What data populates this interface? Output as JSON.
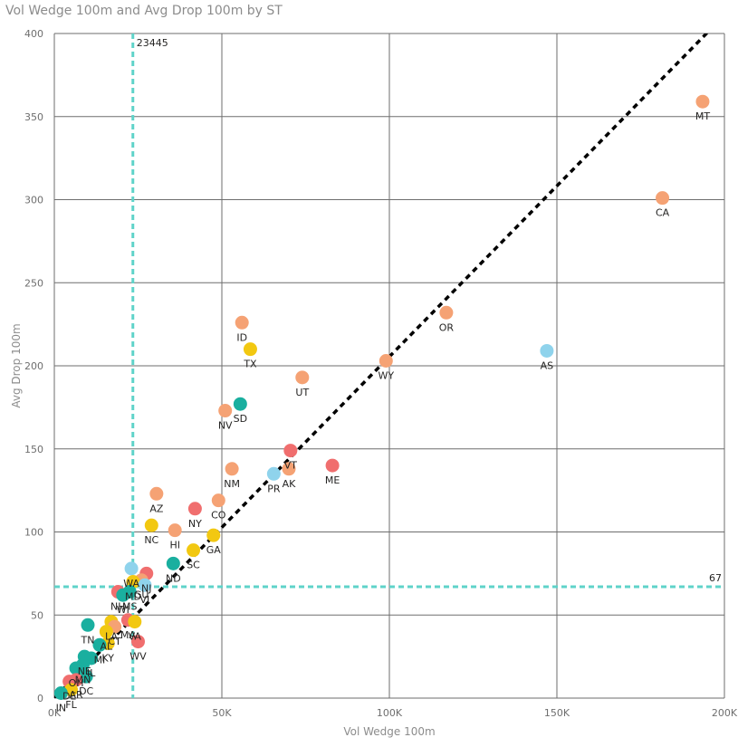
{
  "chart_data": {
    "type": "scatter",
    "title": "Vol Wedge 100m and Avg Drop 100m by ST",
    "xlabel": "Vol Wedge 100m",
    "ylabel": "Avg Drop 100m",
    "xlim": [
      0,
      200000
    ],
    "ylim": [
      0,
      400
    ],
    "x_ticks": [
      0,
      50000,
      100000,
      150000,
      200000
    ],
    "x_tick_labels": [
      "0K",
      "50K",
      "100K",
      "150K",
      "200K"
    ],
    "y_ticks": [
      0,
      50,
      100,
      150,
      200,
      250,
      300,
      350,
      400
    ],
    "y_tick_labels": [
      "0",
      "50",
      "100",
      "150",
      "200",
      "250",
      "300",
      "350",
      "400"
    ],
    "grid": true,
    "reference_lines": {
      "x": {
        "value": 23445,
        "label": "23445"
      },
      "y": {
        "value": 67,
        "label": "67"
      }
    },
    "trend_line": {
      "x": [
        0,
        200000
      ],
      "y": [
        0,
        411
      ]
    },
    "colors": {
      "teal": "#1aaf9f",
      "orange": "#f5a274",
      "yellow": "#f2c811",
      "red": "#f06e6e",
      "lightblue": "#8fd3ec",
      "grid": "#6e6e6e",
      "reference": "#5fd3c9",
      "trend": "#000000"
    },
    "points": [
      {
        "label": "MT",
        "x": 193500,
        "y": 359,
        "color": "orange"
      },
      {
        "label": "CA",
        "x": 181500,
        "y": 301,
        "color": "orange"
      },
      {
        "label": "OR",
        "x": 117000,
        "y": 232,
        "color": "orange"
      },
      {
        "label": "AS",
        "x": 147000,
        "y": 209,
        "color": "lightblue"
      },
      {
        "label": "WY",
        "x": 99000,
        "y": 203,
        "color": "orange"
      },
      {
        "label": "ID",
        "x": 56000,
        "y": 226,
        "color": "orange"
      },
      {
        "label": "TX",
        "x": 58500,
        "y": 210,
        "color": "yellow"
      },
      {
        "label": "UT",
        "x": 74000,
        "y": 193,
        "color": "orange"
      },
      {
        "label": "SD",
        "x": 55500,
        "y": 177,
        "color": "teal"
      },
      {
        "label": "NV",
        "x": 51000,
        "y": 173,
        "color": "orange"
      },
      {
        "label": "VT",
        "x": 70500,
        "y": 149,
        "color": "red"
      },
      {
        "label": "ME",
        "x": 83000,
        "y": 140,
        "color": "red"
      },
      {
        "label": "AK",
        "x": 70000,
        "y": 138,
        "color": "orange"
      },
      {
        "label": "PR",
        "x": 65500,
        "y": 135,
        "color": "lightblue"
      },
      {
        "label": "NM",
        "x": 53000,
        "y": 138,
        "color": "orange"
      },
      {
        "label": "AZ",
        "x": 30500,
        "y": 123,
        "color": "orange"
      },
      {
        "label": "CO",
        "x": 49000,
        "y": 119,
        "color": "orange"
      },
      {
        "label": "NY",
        "x": 42000,
        "y": 114,
        "color": "red"
      },
      {
        "label": "NC",
        "x": 29000,
        "y": 104,
        "color": "yellow"
      },
      {
        "label": "HI",
        "x": 36000,
        "y": 101,
        "color": "orange"
      },
      {
        "label": "GA",
        "x": 47500,
        "y": 98,
        "color": "yellow"
      },
      {
        "label": "SC",
        "x": 41500,
        "y": 89,
        "color": "yellow"
      },
      {
        "label": "ND",
        "x": 35500,
        "y": 81,
        "color": "teal"
      },
      {
        "label": "WA",
        "x": 23000,
        "y": 78,
        "color": "lightblue"
      },
      {
        "label": "NJ",
        "x": 27500,
        "y": 75,
        "color": "red"
      },
      {
        "label": "GU",
        "x": 26000,
        "y": 71,
        "color": "orange"
      },
      {
        "label": "MD",
        "x": 23500,
        "y": 70,
        "color": "yellow"
      },
      {
        "label": "VI",
        "x": 27000,
        "y": 68,
        "color": "lightblue"
      },
      {
        "label": "MS",
        "x": 22500,
        "y": 64,
        "color": "teal"
      },
      {
        "label": "NH",
        "x": 19000,
        "y": 64,
        "color": "red"
      },
      {
        "label": "WI",
        "x": 20500,
        "y": 62,
        "color": "teal"
      },
      {
        "label": "LA",
        "x": 17000,
        "y": 46,
        "color": "yellow"
      },
      {
        "label": "MA",
        "x": 22000,
        "y": 47,
        "color": "red"
      },
      {
        "label": "VA",
        "x": 24000,
        "y": 46,
        "color": "yellow"
      },
      {
        "label": "TN",
        "x": 10000,
        "y": 44,
        "color": "teal"
      },
      {
        "label": "CT",
        "x": 18000,
        "y": 43,
        "color": "orange"
      },
      {
        "label": "AL",
        "x": 15500,
        "y": 40,
        "color": "yellow"
      },
      {
        "label": "WV",
        "x": 25000,
        "y": 34,
        "color": "red"
      },
      {
        "label": "KY",
        "x": 16000,
        "y": 33,
        "color": "yellow"
      },
      {
        "label": "MI",
        "x": 13500,
        "y": 32,
        "color": "teal"
      },
      {
        "label": "NE",
        "x": 9000,
        "y": 25,
        "color": "teal"
      },
      {
        "label": "IL",
        "x": 11000,
        "y": 24,
        "color": "teal"
      },
      {
        "label": "MN",
        "x": 8500,
        "y": 20,
        "color": "teal"
      },
      {
        "label": "OH",
        "x": 6500,
        "y": 18,
        "color": "teal"
      },
      {
        "label": "DC",
        "x": 9500,
        "y": 13,
        "color": "teal"
      },
      {
        "label": "AR",
        "x": 6500,
        "y": 11,
        "color": "red"
      },
      {
        "label": "DE",
        "x": 4500,
        "y": 10,
        "color": "red"
      },
      {
        "label": "FL",
        "x": 5000,
        "y": 5,
        "color": "yellow"
      },
      {
        "label": "IN",
        "x": 2000,
        "y": 3,
        "color": "teal"
      }
    ]
  }
}
